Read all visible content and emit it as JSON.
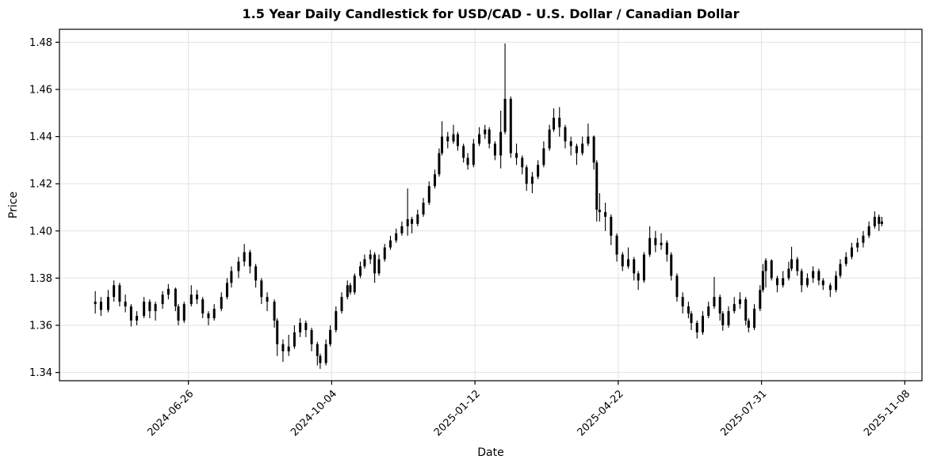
{
  "title": "1.5 Year Daily Candlestick for USD/CAD - U.S. Dollar / Canadian Dollar",
  "xlabel": "Date",
  "ylabel": "Price",
  "chart_data": {
    "type": "candlestick",
    "title": "1.5 Year Daily Candlestick for USD/CAD - U.S. Dollar / Canadian Dollar",
    "xlabel": "Date",
    "ylabel": "Price",
    "grid": true,
    "grid_color": "#e2e2e2",
    "candle_color": "#000000",
    "background": "#ffffff",
    "x_ticks": [
      "2024-06-26",
      "2024-10-04",
      "2025-01-12",
      "2025-04-22",
      "2025-07-31",
      "2025-11-08"
    ],
    "y_ticks": [
      1.34,
      1.36,
      1.38,
      1.4,
      1.42,
      1.44,
      1.46,
      1.48
    ],
    "ylim": [
      1.3365,
      1.4855
    ],
    "xlim": [
      "2024-03-28",
      "2025-11-20"
    ],
    "columns": [
      "date",
      "open",
      "high",
      "low",
      "close"
    ],
    "candles": [
      [
        "2024-04-22",
        1.369,
        1.3745,
        1.365,
        1.37
      ],
      [
        "2024-04-26",
        1.37,
        1.372,
        1.364,
        1.3665
      ],
      [
        "2024-05-01",
        1.3665,
        1.375,
        1.3655,
        1.372
      ],
      [
        "2024-05-05",
        1.372,
        1.379,
        1.37,
        1.377
      ],
      [
        "2024-05-09",
        1.377,
        1.378,
        1.368,
        1.37
      ],
      [
        "2024-05-13",
        1.37,
        1.373,
        1.3655,
        1.368
      ],
      [
        "2024-05-17",
        1.368,
        1.369,
        1.3595,
        1.362
      ],
      [
        "2024-05-21",
        1.362,
        1.366,
        1.36,
        1.364
      ],
      [
        "2024-05-26",
        1.364,
        1.372,
        1.363,
        1.37
      ],
      [
        "2024-05-30",
        1.37,
        1.371,
        1.363,
        1.366
      ],
      [
        "2024-06-03",
        1.366,
        1.37,
        1.362,
        1.369
      ],
      [
        "2024-06-08",
        1.369,
        1.3745,
        1.367,
        1.373
      ],
      [
        "2024-06-12",
        1.373,
        1.3775,
        1.371,
        1.3755
      ],
      [
        "2024-06-17",
        1.3755,
        1.376,
        1.366,
        1.368
      ],
      [
        "2024-06-19",
        1.368,
        1.369,
        1.36,
        1.362
      ],
      [
        "2024-06-23",
        1.362,
        1.37,
        1.361,
        1.369
      ],
      [
        "2024-06-28",
        1.369,
        1.377,
        1.368,
        1.373
      ],
      [
        "2024-07-02",
        1.373,
        1.375,
        1.369,
        1.371
      ],
      [
        "2024-07-06",
        1.371,
        1.372,
        1.363,
        1.365
      ],
      [
        "2024-07-10",
        1.365,
        1.366,
        1.36,
        1.363
      ],
      [
        "2024-07-14",
        1.363,
        1.369,
        1.362,
        1.367
      ],
      [
        "2024-07-19",
        1.367,
        1.374,
        1.366,
        1.372
      ],
      [
        "2024-07-23",
        1.372,
        1.38,
        1.371,
        1.378
      ],
      [
        "2024-07-26",
        1.378,
        1.385,
        1.376,
        1.383
      ],
      [
        "2024-07-31",
        1.383,
        1.389,
        1.38,
        1.387
      ],
      [
        "2024-08-04",
        1.387,
        1.3945,
        1.385,
        1.391
      ],
      [
        "2024-08-08",
        1.391,
        1.392,
        1.382,
        1.385
      ],
      [
        "2024-08-12",
        1.385,
        1.386,
        1.376,
        1.379
      ],
      [
        "2024-08-16",
        1.379,
        1.38,
        1.369,
        1.372
      ],
      [
        "2024-08-20",
        1.372,
        1.374,
        1.366,
        1.37
      ],
      [
        "2024-08-25",
        1.37,
        1.371,
        1.359,
        1.362
      ],
      [
        "2024-08-27",
        1.362,
        1.363,
        1.347,
        1.352
      ],
      [
        "2024-08-31",
        1.352,
        1.354,
        1.3445,
        1.349
      ],
      [
        "2024-09-04",
        1.349,
        1.356,
        1.347,
        1.351
      ],
      [
        "2024-09-08",
        1.351,
        1.36,
        1.35,
        1.357
      ],
      [
        "2024-09-12",
        1.357,
        1.363,
        1.355,
        1.361
      ],
      [
        "2024-09-16",
        1.361,
        1.362,
        1.355,
        1.358
      ],
      [
        "2024-09-20",
        1.358,
        1.359,
        1.349,
        1.352
      ],
      [
        "2024-09-24",
        1.352,
        1.353,
        1.343,
        1.347
      ],
      [
        "2024-09-26",
        1.347,
        1.348,
        1.3415,
        1.344
      ],
      [
        "2024-09-30",
        1.344,
        1.354,
        1.343,
        1.352
      ],
      [
        "2024-10-03",
        1.352,
        1.36,
        1.351,
        1.358
      ],
      [
        "2024-10-07",
        1.358,
        1.368,
        1.357,
        1.366
      ],
      [
        "2024-10-11",
        1.366,
        1.374,
        1.365,
        1.372
      ],
      [
        "2024-10-15",
        1.372,
        1.379,
        1.371,
        1.377
      ],
      [
        "2024-10-17",
        1.377,
        1.378,
        1.373,
        1.374
      ],
      [
        "2024-10-20",
        1.374,
        1.382,
        1.373,
        1.381
      ],
      [
        "2024-10-24",
        1.381,
        1.387,
        1.38,
        1.385
      ],
      [
        "2024-10-27",
        1.385,
        1.39,
        1.384,
        1.388
      ],
      [
        "2024-10-31",
        1.388,
        1.392,
        1.386,
        1.39
      ],
      [
        "2024-11-03",
        1.39,
        1.391,
        1.378,
        1.382
      ],
      [
        "2024-11-06",
        1.382,
        1.39,
        1.381,
        1.388
      ],
      [
        "2024-11-10",
        1.388,
        1.3945,
        1.387,
        1.393
      ],
      [
        "2024-11-14",
        1.393,
        1.398,
        1.392,
        1.396
      ],
      [
        "2024-11-18",
        1.396,
        1.401,
        1.395,
        1.399
      ],
      [
        "2024-11-22",
        1.399,
        1.404,
        1.398,
        1.402
      ],
      [
        "2024-11-26",
        1.402,
        1.418,
        1.398,
        1.405
      ],
      [
        "2024-11-29",
        1.405,
        1.406,
        1.399,
        1.403
      ],
      [
        "2024-12-03",
        1.403,
        1.409,
        1.402,
        1.407
      ],
      [
        "2024-12-07",
        1.407,
        1.414,
        1.406,
        1.412
      ],
      [
        "2024-12-11",
        1.412,
        1.421,
        1.411,
        1.419
      ],
      [
        "2024-12-15",
        1.419,
        1.426,
        1.418,
        1.424
      ],
      [
        "2024-12-18",
        1.424,
        1.435,
        1.423,
        1.433
      ],
      [
        "2024-12-20",
        1.433,
        1.4465,
        1.432,
        1.44
      ],
      [
        "2024-12-24",
        1.44,
        1.442,
        1.435,
        1.438
      ],
      [
        "2024-12-28",
        1.438,
        1.445,
        1.437,
        1.441
      ],
      [
        "2024-12-31",
        1.441,
        1.442,
        1.434,
        1.436
      ],
      [
        "2025-01-04",
        1.436,
        1.437,
        1.429,
        1.431
      ],
      [
        "2025-01-07",
        1.431,
        1.433,
        1.426,
        1.428
      ],
      [
        "2025-01-11",
        1.428,
        1.439,
        1.427,
        1.437
      ],
      [
        "2025-01-15",
        1.437,
        1.444,
        1.436,
        1.441
      ],
      [
        "2025-01-19",
        1.441,
        1.445,
        1.439,
        1.443
      ],
      [
        "2025-01-22",
        1.443,
        1.444,
        1.435,
        1.437
      ],
      [
        "2025-01-26",
        1.437,
        1.438,
        1.43,
        1.432
      ],
      [
        "2025-01-30",
        1.432,
        1.451,
        1.4265,
        1.442
      ],
      [
        "2025-02-02",
        1.442,
        1.4795,
        1.441,
        1.456
      ],
      [
        "2025-02-06",
        1.456,
        1.457,
        1.431,
        1.433
      ],
      [
        "2025-02-10",
        1.433,
        1.437,
        1.428,
        1.431
      ],
      [
        "2025-02-14",
        1.431,
        1.432,
        1.424,
        1.427
      ],
      [
        "2025-02-17",
        1.427,
        1.428,
        1.417,
        1.42
      ],
      [
        "2025-02-21",
        1.42,
        1.425,
        1.416,
        1.423
      ],
      [
        "2025-02-25",
        1.423,
        1.43,
        1.422,
        1.428
      ],
      [
        "2025-03-01",
        1.428,
        1.438,
        1.427,
        1.435
      ],
      [
        "2025-03-05",
        1.435,
        1.445,
        1.434,
        1.443
      ],
      [
        "2025-03-08",
        1.443,
        1.452,
        1.442,
        1.448
      ],
      [
        "2025-03-12",
        1.448,
        1.4525,
        1.44,
        1.444
      ],
      [
        "2025-03-16",
        1.444,
        1.445,
        1.435,
        1.438
      ],
      [
        "2025-03-20",
        1.438,
        1.44,
        1.432,
        1.436
      ],
      [
        "2025-03-24",
        1.436,
        1.437,
        1.428,
        1.433
      ],
      [
        "2025-03-28",
        1.433,
        1.44,
        1.432,
        1.437
      ],
      [
        "2025-04-01",
        1.437,
        1.4455,
        1.436,
        1.44
      ],
      [
        "2025-04-05",
        1.44,
        1.4405,
        1.426,
        1.429
      ],
      [
        "2025-04-07",
        1.429,
        1.43,
        1.404,
        1.409
      ],
      [
        "2025-04-09",
        1.409,
        1.416,
        1.404,
        1.408
      ],
      [
        "2025-04-13",
        1.408,
        1.412,
        1.4,
        1.406
      ],
      [
        "2025-04-17",
        1.406,
        1.407,
        1.394,
        1.398
      ],
      [
        "2025-04-21",
        1.398,
        1.399,
        1.387,
        1.39
      ],
      [
        "2025-04-25",
        1.39,
        1.391,
        1.383,
        1.385
      ],
      [
        "2025-04-29",
        1.385,
        1.393,
        1.384,
        1.388
      ],
      [
        "2025-05-03",
        1.388,
        1.389,
        1.379,
        1.382
      ],
      [
        "2025-05-06",
        1.382,
        1.383,
        1.375,
        1.379
      ],
      [
        "2025-05-10",
        1.379,
        1.391,
        1.378,
        1.39
      ],
      [
        "2025-05-14",
        1.39,
        1.402,
        1.389,
        1.397
      ],
      [
        "2025-05-18",
        1.397,
        1.4,
        1.391,
        1.394
      ],
      [
        "2025-05-22",
        1.394,
        1.399,
        1.392,
        1.395
      ],
      [
        "2025-05-26",
        1.395,
        1.396,
        1.387,
        1.39
      ],
      [
        "2025-05-29",
        1.39,
        1.391,
        1.379,
        1.381
      ],
      [
        "2025-06-02",
        1.381,
        1.382,
        1.37,
        1.372
      ],
      [
        "2025-06-06",
        1.372,
        1.374,
        1.365,
        1.368
      ],
      [
        "2025-06-10",
        1.368,
        1.37,
        1.363,
        1.365
      ],
      [
        "2025-06-12",
        1.365,
        1.366,
        1.358,
        1.361
      ],
      [
        "2025-06-16",
        1.361,
        1.362,
        1.3544,
        1.357
      ],
      [
        "2025-06-20",
        1.357,
        1.366,
        1.356,
        1.364
      ],
      [
        "2025-06-24",
        1.364,
        1.37,
        1.363,
        1.368
      ],
      [
        "2025-06-28",
        1.368,
        1.3805,
        1.367,
        1.372
      ],
      [
        "2025-07-02",
        1.372,
        1.373,
        1.362,
        1.365
      ],
      [
        "2025-07-04",
        1.365,
        1.366,
        1.3577,
        1.36
      ],
      [
        "2025-07-08",
        1.36,
        1.368,
        1.359,
        1.366
      ],
      [
        "2025-07-12",
        1.366,
        1.372,
        1.365,
        1.369
      ],
      [
        "2025-07-16",
        1.369,
        1.374,
        1.367,
        1.371
      ],
      [
        "2025-07-20",
        1.371,
        1.372,
        1.36,
        1.362
      ],
      [
        "2025-07-22",
        1.362,
        1.363,
        1.357,
        1.359
      ],
      [
        "2025-07-26",
        1.359,
        1.369,
        1.358,
        1.367
      ],
      [
        "2025-07-30",
        1.367,
        1.377,
        1.366,
        1.375
      ],
      [
        "2025-08-01",
        1.375,
        1.386,
        1.374,
        1.383
      ],
      [
        "2025-08-03",
        1.383,
        1.3885,
        1.376,
        1.3875
      ],
      [
        "2025-08-07",
        1.3875,
        1.388,
        1.379,
        1.38
      ],
      [
        "2025-08-11",
        1.38,
        1.381,
        1.374,
        1.377
      ],
      [
        "2025-08-15",
        1.377,
        1.383,
        1.376,
        1.38
      ],
      [
        "2025-08-19",
        1.38,
        1.387,
        1.379,
        1.384
      ],
      [
        "2025-08-21",
        1.384,
        1.3933,
        1.383,
        1.388
      ],
      [
        "2025-08-25",
        1.388,
        1.389,
        1.381,
        1.383
      ],
      [
        "2025-08-28",
        1.383,
        1.384,
        1.374,
        1.377
      ],
      [
        "2025-09-01",
        1.377,
        1.382,
        1.376,
        1.38
      ],
      [
        "2025-09-05",
        1.38,
        1.385,
        1.378,
        1.383
      ],
      [
        "2025-09-09",
        1.383,
        1.384,
        1.377,
        1.379
      ],
      [
        "2025-09-12",
        1.379,
        1.38,
        1.375,
        1.377
      ],
      [
        "2025-09-17",
        1.377,
        1.378,
        1.372,
        1.375
      ],
      [
        "2025-09-21",
        1.375,
        1.383,
        1.374,
        1.381
      ],
      [
        "2025-09-24",
        1.381,
        1.388,
        1.38,
        1.386
      ],
      [
        "2025-09-28",
        1.386,
        1.391,
        1.385,
        1.389
      ],
      [
        "2025-10-02",
        1.389,
        1.395,
        1.388,
        1.393
      ],
      [
        "2025-10-06",
        1.393,
        1.397,
        1.391,
        1.395
      ],
      [
        "2025-10-10",
        1.395,
        1.4,
        1.393,
        1.398
      ],
      [
        "2025-10-14",
        1.398,
        1.404,
        1.397,
        1.402
      ],
      [
        "2025-10-18",
        1.402,
        1.4083,
        1.401,
        1.406
      ],
      [
        "2025-10-21",
        1.406,
        1.407,
        1.4,
        1.403
      ],
      [
        "2025-10-23",
        1.403,
        1.406,
        1.402,
        1.404
      ]
    ]
  }
}
